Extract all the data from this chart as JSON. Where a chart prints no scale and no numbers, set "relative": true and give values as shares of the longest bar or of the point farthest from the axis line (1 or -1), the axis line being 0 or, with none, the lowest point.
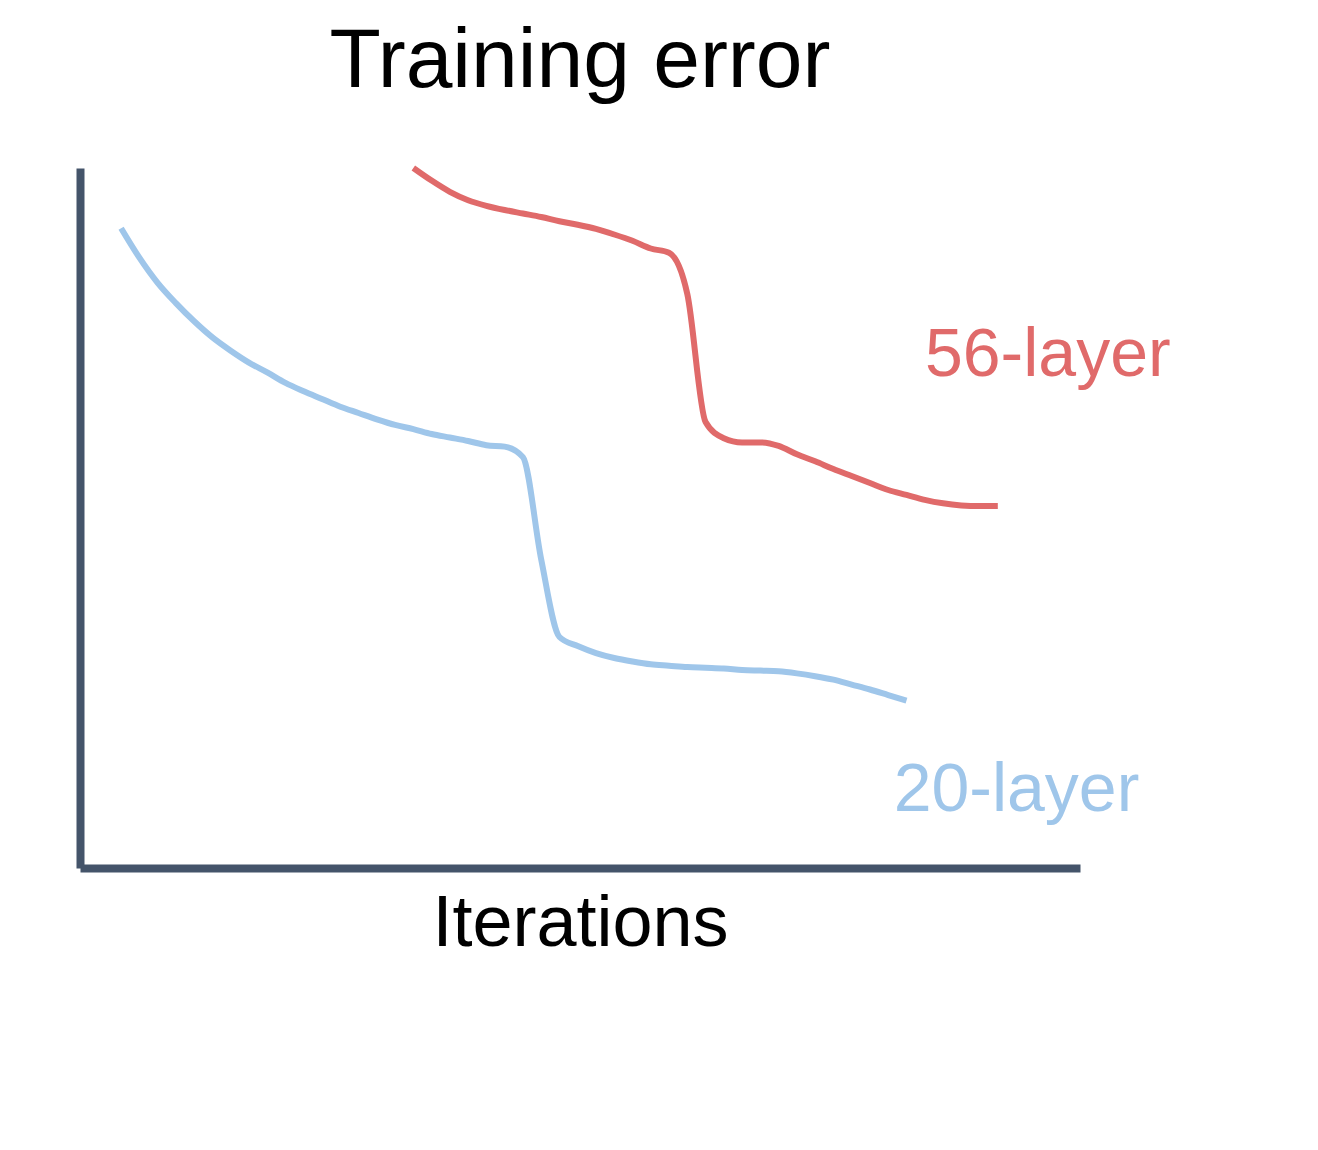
{
  "chart_data": {
    "type": "line",
    "title": "Training error",
    "xlabel": "Iterations",
    "relative": true,
    "legend": false,
    "line_style": "solid",
    "marker": "none",
    "categories": [
      null,
      null,
      null,
      null,
      null,
      null,
      null,
      null,
      null,
      null,
      null,
      null,
      null,
      null,
      null,
      null,
      null,
      null,
      null,
      null,
      null,
      null,
      null,
      null,
      null,
      null,
      null,
      null,
      null,
      null,
      null,
      null,
      null,
      null,
      null,
      null,
      null,
      null,
      null,
      null,
      null,
      null,
      null,
      null,
      null,
      null,
      null,
      null,
      null
    ],
    "series": [
      {
        "name": "56-layer",
        "color": "#e06a6a",
        "values": [
          null,
          null,
          null,
          null,
          null,
          null,
          null,
          null,
          null,
          null,
          null,
          null,
          null,
          null,
          null,
          null,
          1.0,
          0.982,
          0.966,
          0.954,
          0.946,
          0.94,
          0.935,
          0.93,
          0.924,
          0.919,
          0.913,
          0.905,
          0.896,
          0.885,
          0.879,
          0.82,
          0.637,
          0.614,
          0.608,
          0.608,
          0.603,
          0.591,
          0.581,
          0.57,
          0.56,
          0.55,
          0.54,
          0.533,
          0.526,
          0.521,
          0.518,
          0.517,
          0.517
        ]
      },
      {
        "name": "20-layer",
        "color": "#9fc6ea",
        "values": [
          0.914,
          0.872,
          0.836,
          0.807,
          0.781,
          0.758,
          0.739,
          0.722,
          0.708,
          0.693,
          0.681,
          0.67,
          0.659,
          0.65,
          0.641,
          0.633,
          0.627,
          0.62,
          0.615,
          0.61,
          0.604,
          0.602,
          0.587,
          0.441,
          0.33,
          0.317,
          0.307,
          0.3,
          0.295,
          0.291,
          0.289,
          0.287,
          0.286,
          0.285,
          0.283,
          0.282,
          0.281,
          0.278,
          0.274,
          0.269,
          0.262,
          0.255,
          0.247,
          0.239,
          null,
          null,
          null,
          null,
          null
        ]
      }
    ]
  }
}
